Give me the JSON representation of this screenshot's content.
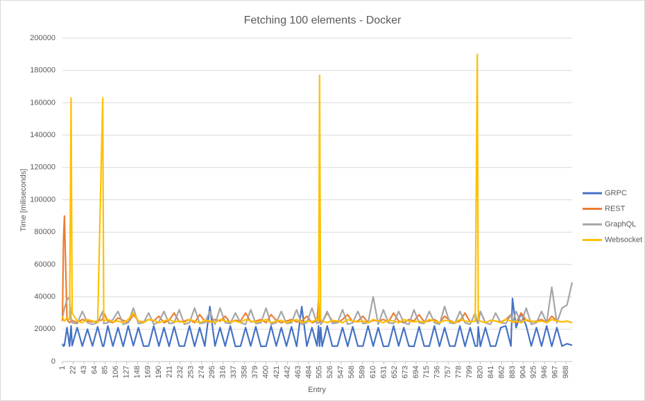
{
  "chart_data": {
    "type": "line",
    "title": "Fetching 100 elements - Docker",
    "xlabel": "Entry",
    "ylabel": "Time [miliseconds]",
    "x": [
      1,
      3,
      5,
      10,
      15,
      18,
      20,
      30,
      40,
      50,
      60,
      70,
      80,
      82,
      90,
      100,
      110,
      120,
      130,
      140,
      150,
      160,
      170,
      180,
      190,
      200,
      210,
      220,
      230,
      240,
      250,
      260,
      270,
      280,
      290,
      300,
      310,
      320,
      330,
      340,
      350,
      360,
      370,
      380,
      390,
      400,
      410,
      420,
      430,
      440,
      450,
      460,
      470,
      480,
      490,
      500,
      503,
      505,
      507,
      510,
      520,
      530,
      540,
      550,
      560,
      570,
      580,
      590,
      600,
      610,
      620,
      630,
      640,
      650,
      660,
      670,
      680,
      690,
      700,
      710,
      720,
      730,
      740,
      750,
      760,
      770,
      780,
      790,
      800,
      810,
      814,
      816,
      820,
      830,
      840,
      850,
      860,
      870,
      880,
      883,
      890,
      900,
      910,
      920,
      930,
      940,
      950,
      960,
      970,
      980,
      990,
      1000
    ],
    "series": [
      {
        "name": "GRPC",
        "color": "#4472c4",
        "values": [
          11000,
          9500,
          10000,
          21000,
          9500,
          22000,
          9800,
          21000,
          9500,
          20000,
          9600,
          21500,
          9400,
          9700,
          22000,
          9500,
          21000,
          9400,
          22000,
          9800,
          21000,
          9500,
          9600,
          22000,
          9500,
          21000,
          9400,
          21500,
          9600,
          9500,
          22000,
          9400,
          21000,
          9500,
          34000,
          9600,
          21000,
          9500,
          22000,
          9400,
          9500,
          21000,
          9600,
          21500,
          9400,
          9500,
          22000,
          9600,
          21000,
          9500,
          21500,
          9400,
          34000,
          9500,
          21000,
          9600,
          22000,
          9500,
          21000,
          9400,
          22000,
          9500,
          9600,
          21000,
          9400,
          21500,
          9500,
          9600,
          22000,
          9500,
          21000,
          9400,
          9500,
          22000,
          9600,
          21000,
          9500,
          9400,
          21500,
          9600,
          9500,
          22000,
          9400,
          21000,
          9600,
          9500,
          22000,
          9400,
          21000,
          9500,
          9600,
          21500,
          9400,
          21000,
          9500,
          9600,
          21000,
          22000,
          9500,
          39000,
          21000,
          30000,
          22000,
          9600,
          21000,
          9500,
          22000,
          9400,
          21000,
          9500,
          11000,
          10000
        ]
      },
      {
        "name": "REST",
        "color": "#ed7d31",
        "values": [
          25000,
          75000,
          90000,
          26000,
          24000,
          25000,
          25500,
          24000,
          26000,
          25000,
          24500,
          25000,
          26000,
          30000,
          25000,
          24000,
          27000,
          25500,
          24000,
          29000,
          25000,
          24500,
          26000,
          25000,
          28000,
          24000,
          25500,
          30000,
          24500,
          25000,
          26000,
          24000,
          29000,
          25000,
          24500,
          26000,
          25000,
          28000,
          24000,
          25500,
          25000,
          30000,
          24500,
          25000,
          26000,
          24000,
          29000,
          25500,
          24000,
          25000,
          26000,
          24500,
          25000,
          28000,
          24000,
          25000,
          38000,
          26000,
          25000,
          24500,
          30000,
          25000,
          24000,
          26000,
          29000,
          24500,
          25000,
          28000,
          24000,
          25500,
          25000,
          26000,
          24500,
          30000,
          25000,
          24000,
          26000,
          25000,
          29000,
          24500,
          25000,
          26000,
          24000,
          28000,
          25500,
          24000,
          25000,
          30000,
          24500,
          25000,
          26000,
          25000,
          31000,
          24000,
          25500,
          25000,
          24500,
          26000,
          29000,
          25000,
          24000,
          30000,
          25500,
          24500,
          25000,
          26000,
          24000,
          28000,
          25000,
          24500,
          25000,
          24000
        ]
      },
      {
        "name": "GraphQL",
        "color": "#a5a5a5",
        "values": [
          27000,
          30000,
          33000,
          38000,
          40000,
          26000,
          24000,
          23500,
          31000,
          24000,
          23000,
          24000,
          31000,
          23500,
          24000,
          26000,
          31000,
          23000,
          24000,
          33000,
          23500,
          24000,
          30000,
          23000,
          24500,
          31000,
          23500,
          24000,
          32000,
          23000,
          24000,
          33000,
          23500,
          24000,
          31000,
          23000,
          33000,
          24000,
          23500,
          30000,
          24000,
          23000,
          32000,
          23500,
          24000,
          33000,
          23000,
          24000,
          31000,
          23500,
          24000,
          32000,
          23000,
          24000,
          33000,
          23500,
          24000,
          25000,
          23000,
          24000,
          31000,
          23500,
          24000,
          32000,
          23000,
          24000,
          31000,
          23500,
          24000,
          40000,
          23000,
          32000,
          24000,
          23500,
          31000,
          24000,
          23000,
          32000,
          24000,
          23500,
          31000,
          24000,
          23000,
          34000,
          24000,
          23500,
          31000,
          24000,
          23000,
          30000,
          24000,
          23500,
          31000,
          24000,
          23000,
          30000,
          24000,
          23500,
          29000,
          24000,
          31000,
          24000,
          33000,
          23000,
          24000,
          31000,
          24000,
          46000,
          24000,
          33000,
          35000,
          49000
        ]
      },
      {
        "name": "Websocket",
        "color": "#ffc000",
        "values": [
          28000,
          26000,
          25000,
          27000,
          26000,
          163000,
          30000,
          25000,
          24000,
          26000,
          25000,
          24000,
          163000,
          25000,
          26000,
          24500,
          25000,
          24000,
          26000,
          30000,
          25000,
          24000,
          26000,
          25500,
          24000,
          25000,
          26000,
          24500,
          25000,
          24000,
          26000,
          25000,
          24000,
          25500,
          25000,
          24000,
          26000,
          25000,
          24500,
          25000,
          24000,
          26000,
          25000,
          24500,
          25000,
          26000,
          24000,
          25000,
          25500,
          24000,
          25000,
          26000,
          24000,
          25000,
          24500,
          26000,
          25000,
          177000,
          26000,
          25000,
          24000,
          25500,
          25000,
          24000,
          26000,
          25000,
          24500,
          25000,
          24000,
          26000,
          25000,
          24000,
          25500,
          25000,
          24000,
          26000,
          25000,
          24500,
          25000,
          24000,
          26000,
          25000,
          24000,
          25500,
          25000,
          24000,
          26000,
          25000,
          24500,
          25000,
          190000,
          26000,
          25000,
          24000,
          25500,
          25000,
          24000,
          26000,
          25000,
          24500,
          25000,
          24000,
          26000,
          25000,
          24500,
          25000,
          24000,
          26000,
          25000,
          24500,
          25000,
          24000
        ]
      }
    ],
    "xlim": [
      1,
      1000
    ],
    "xticks": [
      1,
      22,
      43,
      64,
      85,
      106,
      127,
      148,
      169,
      190,
      211,
      232,
      253,
      274,
      295,
      316,
      337,
      358,
      379,
      400,
      421,
      442,
      463,
      484,
      505,
      526,
      547,
      568,
      589,
      610,
      631,
      652,
      673,
      694,
      715,
      736,
      757,
      778,
      799,
      820,
      841,
      862,
      883,
      904,
      925,
      946,
      967,
      988
    ],
    "ylim": [
      0,
      200000
    ],
    "yticks": [
      0,
      20000,
      40000,
      60000,
      80000,
      100000,
      120000,
      140000,
      160000,
      180000,
      200000
    ],
    "grid": true,
    "legend": "right"
  }
}
